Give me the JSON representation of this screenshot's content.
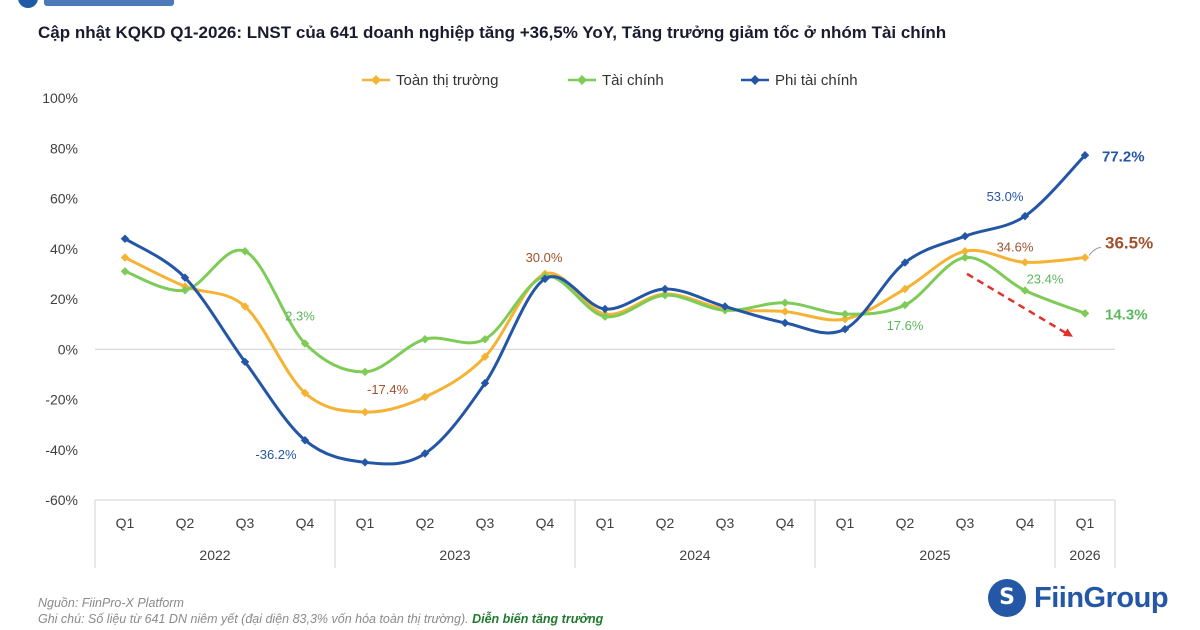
{
  "title": "Cập nhật KQKD Q1-2026: LNST của 641 doanh nghiệp tăng +36,5% YoY, Tăng trưởng giảm tốc ở nhóm Tài chính",
  "footer": {
    "source": "Nguồn: FiinPro-X Platform",
    "note": "Ghi chú: Số liệu từ 641 DN niêm yết (đại diện 83,3% vốn hóa toàn thị trường).",
    "highlight": "Diễn biến tăng trưởng"
  },
  "logo": {
    "text": "FiinGroup",
    "icon": "fiingroup-logo-icon"
  },
  "colors": {
    "toan": "#f5b335",
    "taichinh": "#7ecb57",
    "phitaichinh": "#2456a6",
    "arrow": "#e0322b"
  },
  "chart_data": {
    "type": "line",
    "title": "Cập nhật KQKD Q1-2026: LNST của 641 doanh nghiệp tăng +36,5% YoY, Tăng trưởng giảm tốc ở nhóm Tài chính",
    "ylim": [
      -60,
      100
    ],
    "yticks": [
      -60,
      -40,
      -20,
      0,
      20,
      40,
      60,
      80,
      100
    ],
    "ytick_labels": [
      "-60%",
      "-40%",
      "-20%",
      "0%",
      "20%",
      "40%",
      "60%",
      "80%",
      "100%"
    ],
    "grid": false,
    "legend_position": "top-center",
    "categories": [
      "Q1",
      "Q2",
      "Q3",
      "Q4",
      "Q1",
      "Q2",
      "Q3",
      "Q4",
      "Q1",
      "Q2",
      "Q3",
      "Q4",
      "Q1",
      "Q2",
      "Q3",
      "Q4",
      "Q1"
    ],
    "year_groups": [
      {
        "label": "2022",
        "count": 4
      },
      {
        "label": "2023",
        "count": 4
      },
      {
        "label": "2024",
        "count": 4
      },
      {
        "label": "2025",
        "count": 4
      },
      {
        "label": "2026",
        "count": 1
      }
    ],
    "series": [
      {
        "name": "Toàn thị trường",
        "color": "#f5b335",
        "label_color": "#a0522d",
        "values": [
          36.5,
          25,
          17,
          -17.4,
          -25,
          -19,
          -3,
          30.0,
          14,
          22,
          16,
          15,
          12,
          24,
          39,
          34.6,
          36.5
        ],
        "labels": [
          {
            "index": 3,
            "text": "-17.4%"
          },
          {
            "index": 7,
            "text": "30.0%"
          },
          {
            "index": 15,
            "text": "34.6%"
          },
          {
            "index": 16,
            "text": "36.5%"
          }
        ]
      },
      {
        "name": "Tài chính",
        "color": "#7ecb57",
        "label_color": "#5cb85c",
        "values": [
          31,
          23.5,
          39,
          2.3,
          -9,
          4,
          4,
          29,
          13,
          21.5,
          15.5,
          18.5,
          14,
          17.6,
          36.5,
          23.4,
          14.3
        ],
        "labels": [
          {
            "index": 3,
            "text": "2.3%"
          },
          {
            "index": 13,
            "text": "17.6%"
          },
          {
            "index": 15,
            "text": "23.4%"
          },
          {
            "index": 16,
            "text": "14.3%"
          }
        ]
      },
      {
        "name": "Phi tài chính",
        "color": "#2456a6",
        "label_color": "#2456a6",
        "values": [
          44,
          28.5,
          -5,
          -36.2,
          -45,
          -41.5,
          -13.5,
          28,
          16,
          24,
          17,
          10.5,
          8,
          34.5,
          45,
          53.0,
          77.2
        ],
        "labels": [
          {
            "index": 3,
            "text": "-36.2%"
          },
          {
            "index": 15,
            "text": "53.0%"
          },
          {
            "index": 16,
            "text": "77.2%"
          }
        ]
      }
    ]
  }
}
